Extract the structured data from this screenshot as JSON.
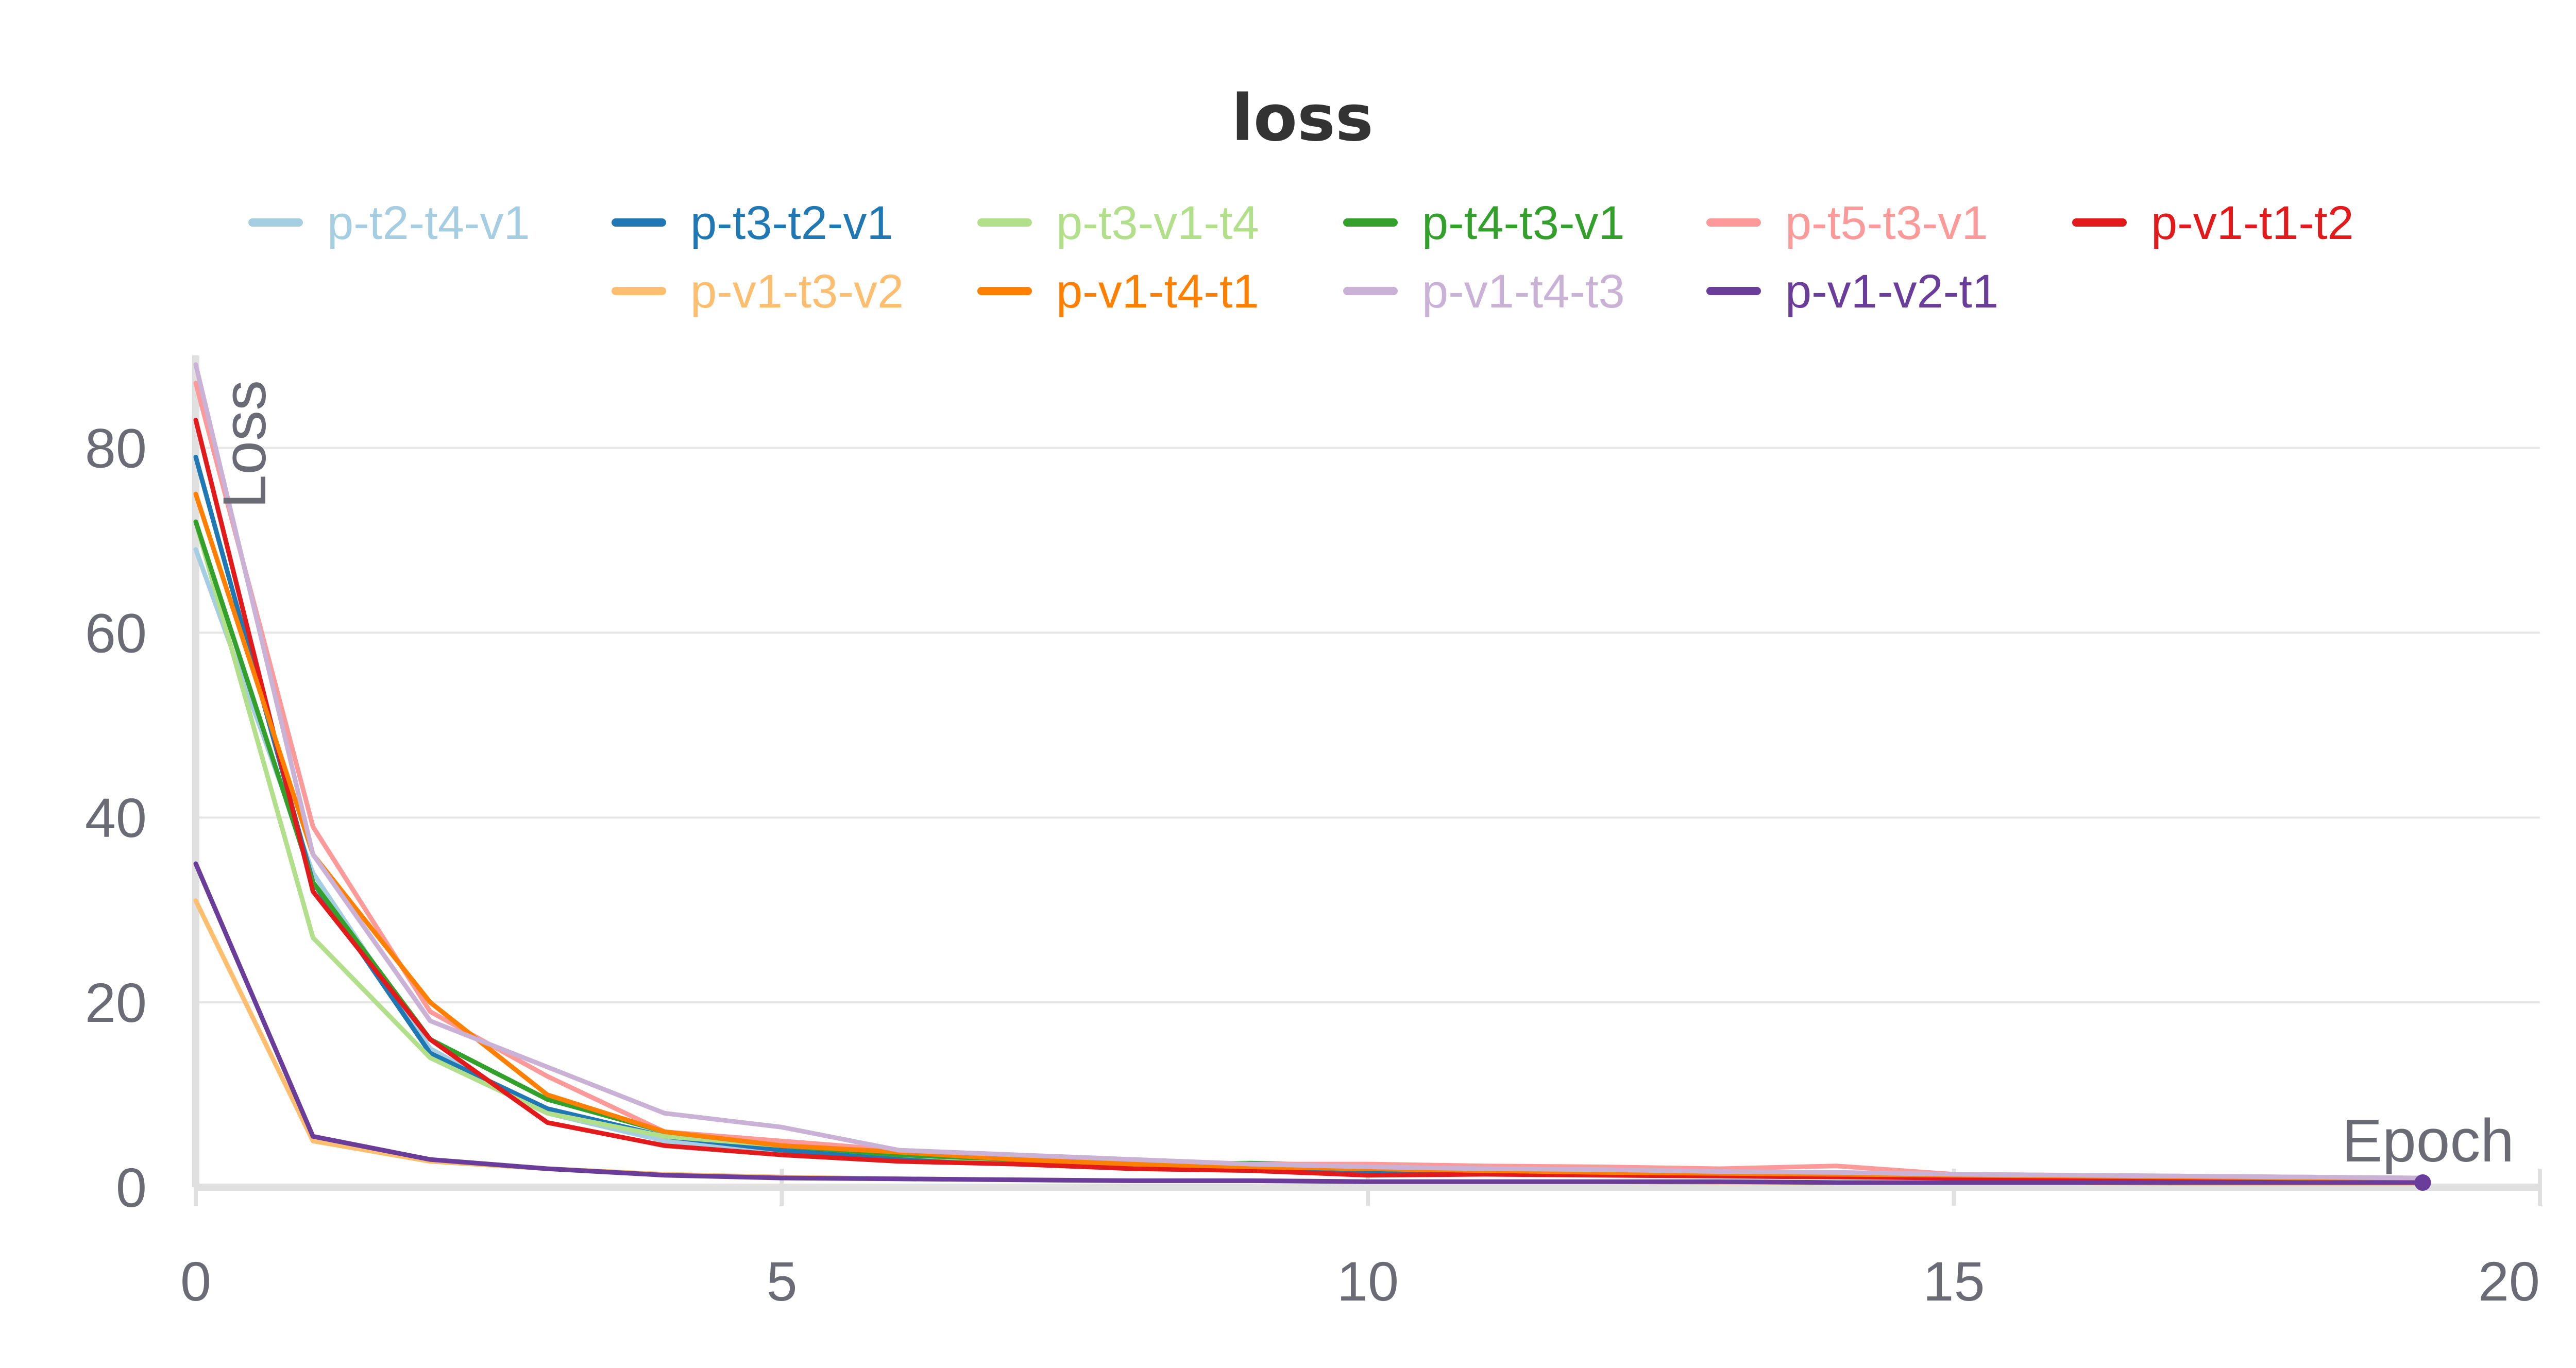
{
  "chart_data": {
    "type": "line",
    "title": "loss",
    "xlabel": "Epoch",
    "ylabel": "Loss",
    "xlim": [
      0,
      20
    ],
    "ylim": [
      0,
      90
    ],
    "x_ticks": [
      0,
      5,
      10,
      15,
      20
    ],
    "y_ticks": [
      0,
      20,
      40,
      60,
      80
    ],
    "grid": true,
    "legend_position": "top",
    "x": [
      0,
      1,
      2,
      3,
      4,
      5,
      6,
      7,
      8,
      9,
      10,
      11,
      12,
      13,
      14,
      15,
      16,
      17,
      18,
      19
    ],
    "series": [
      {
        "name": "p-t2-t4-v1",
        "color": "#a6cee3",
        "values": [
          69,
          34,
          15,
          8,
          5,
          4,
          3,
          2.5,
          2.2,
          2,
          1.8,
          1.6,
          1.5,
          1.4,
          1.3,
          1.2,
          1.1,
          1.0,
          0.9,
          0.8
        ]
      },
      {
        "name": "p-t3-t2-v1",
        "color": "#1f78b4",
        "values": [
          79,
          33,
          14.5,
          8.5,
          5.5,
          4,
          3.2,
          2.6,
          2.2,
          2,
          1.8,
          1.6,
          1.5,
          1.4,
          1.3,
          1.2,
          1.1,
          1.0,
          0.9,
          0.8
        ]
      },
      {
        "name": "p-t3-v1-t4",
        "color": "#b2df8a",
        "values": [
          72,
          27,
          14,
          8,
          5.5,
          4.5,
          3.5,
          2.8,
          2.4,
          2.2,
          2,
          1.8,
          1.7,
          1.6,
          1.5,
          1.3,
          1.2,
          1.1,
          1.0,
          0.9
        ]
      },
      {
        "name": "p-t4-t3-v1",
        "color": "#33a02c",
        "values": [
          72,
          33,
          16,
          9.5,
          6,
          4.5,
          3.5,
          3,
          2.5,
          2.6,
          2.3,
          2,
          1.8,
          1.6,
          1.5,
          1.3,
          1.2,
          1.1,
          1.0,
          0.9
        ]
      },
      {
        "name": "p-t5-t3-v1",
        "color": "#fb9a99",
        "values": [
          87,
          39,
          19,
          12,
          6,
          5,
          4,
          3.5,
          3,
          2.5,
          2.5,
          2.3,
          2.2,
          2,
          2.3,
          1.4,
          1.3,
          1.2,
          1.1,
          1.0
        ]
      },
      {
        "name": "p-v1-t1-t2",
        "color": "#e31a1c",
        "values": [
          83,
          32,
          16,
          7,
          4.5,
          3.5,
          2.8,
          2.5,
          2.0,
          1.8,
          1.3,
          1.4,
          1.3,
          1.2,
          1.1,
          1.0,
          0.9,
          0.8,
          0.8,
          0.7
        ]
      },
      {
        "name": "p-v1-t3-v2",
        "color": "#fdbf6f",
        "values": [
          31,
          5,
          2.8,
          2,
          1.4,
          1.1,
          0.9,
          0.8,
          0.7,
          0.7,
          0.6,
          0.6,
          0.6,
          0.5,
          0.5,
          0.5,
          0.5,
          0.4,
          0.4,
          0.4
        ]
      },
      {
        "name": "p-v1-t4-t1",
        "color": "#ff7f00",
        "values": [
          75,
          36,
          20,
          10,
          6,
          4.5,
          3.8,
          3,
          2.5,
          2.2,
          2,
          1.8,
          1.6,
          1.5,
          1.4,
          1.3,
          1.2,
          1.1,
          1.0,
          0.9
        ]
      },
      {
        "name": "p-v1-t4-t3",
        "color": "#cab2d6",
        "values": [
          89,
          36,
          18,
          13,
          8,
          6.5,
          4,
          3.5,
          3,
          2.5,
          2.2,
          2,
          1.9,
          1.7,
          1.6,
          1.4,
          1.3,
          1.2,
          1.1,
          1.0
        ]
      },
      {
        "name": "p-v1-v2-t1",
        "color": "#6a3d9a",
        "values": [
          35,
          5.5,
          3,
          2,
          1.3,
          1,
          0.9,
          0.8,
          0.7,
          0.7,
          0.6,
          0.6,
          0.6,
          0.6,
          0.5,
          0.5,
          0.5,
          0.5,
          0.5,
          0.5
        ]
      }
    ]
  }
}
